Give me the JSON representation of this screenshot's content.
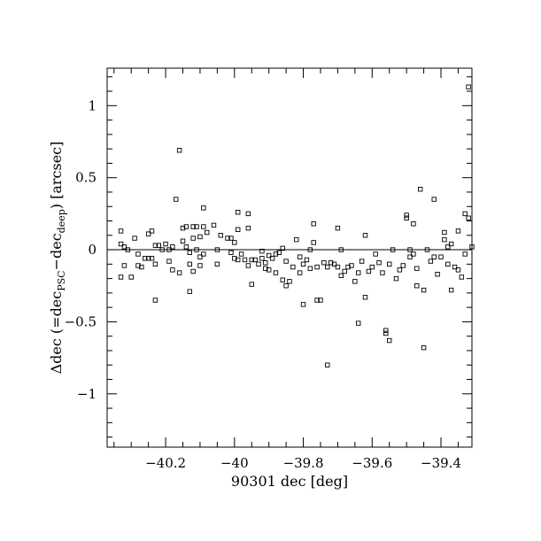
{
  "chart_data": {
    "type": "scatter",
    "title": "",
    "xlabel": "90301 dec [deg]",
    "ylabel_parts": {
      "prefix": "Δdec (=dec",
      "sub1": "PSC",
      "mid": "−dec",
      "sub2": "deep",
      "suffix": ") [arcsec]"
    },
    "xlim": [
      -40.37,
      -39.31
    ],
    "ylim": [
      -1.37,
      1.26
    ],
    "x_ticks": [
      {
        "value": -40.2,
        "label": "−40.2"
      },
      {
        "value": -40.0,
        "label": "−40"
      },
      {
        "value": -39.8,
        "label": "−39.8"
      },
      {
        "value": -39.6,
        "label": "−39.6"
      },
      {
        "value": -39.4,
        "label": "−39.4"
      }
    ],
    "y_ticks": [
      {
        "value": 1.0,
        "label": "1"
      },
      {
        "value": 0.5,
        "label": "0.5"
      },
      {
        "value": 0.0,
        "label": "0"
      },
      {
        "value": -0.5,
        "label": "−0.5"
      },
      {
        "value": -1.0,
        "label": "−1"
      }
    ],
    "x_minor_step": 0.05,
    "y_minor_step": 0.1,
    "zero_line": true,
    "marker": "open-square",
    "grid": false,
    "points": [
      [
        -40.33,
        0.13
      ],
      [
        -40.33,
        0.04
      ],
      [
        -40.32,
        0.02
      ],
      [
        -40.31,
        0.0
      ],
      [
        -40.32,
        -0.11
      ],
      [
        -40.33,
        -0.19
      ],
      [
        -40.3,
        -0.19
      ],
      [
        -40.29,
        0.08
      ],
      [
        -40.28,
        -0.03
      ],
      [
        -40.28,
        -0.11
      ],
      [
        -40.27,
        -0.12
      ],
      [
        -40.26,
        -0.06
      ],
      [
        -40.25,
        0.11
      ],
      [
        -40.24,
        0.13
      ],
      [
        -40.25,
        -0.06
      ],
      [
        -40.24,
        -0.06
      ],
      [
        -40.23,
        0.03
      ],
      [
        -40.23,
        -0.1
      ],
      [
        -40.22,
        0.03
      ],
      [
        -40.23,
        -0.35
      ],
      [
        -40.21,
        0.0
      ],
      [
        -40.2,
        0.04
      ],
      [
        -40.19,
        0.0
      ],
      [
        -40.19,
        -0.08
      ],
      [
        -40.18,
        -0.14
      ],
      [
        -40.18,
        0.02
      ],
      [
        -40.17,
        0.35
      ],
      [
        -40.16,
        0.69
      ],
      [
        -40.16,
        -0.16
      ],
      [
        -40.15,
        0.15
      ],
      [
        -40.15,
        0.06
      ],
      [
        -40.14,
        0.16
      ],
      [
        -40.14,
        0.02
      ],
      [
        -40.13,
        -0.02
      ],
      [
        -40.13,
        -0.1
      ],
      [
        -40.12,
        0.16
      ],
      [
        -40.12,
        0.08
      ],
      [
        -40.12,
        -0.15
      ],
      [
        -40.11,
        0.16
      ],
      [
        -40.13,
        -0.29
      ],
      [
        -40.11,
        0.0
      ],
      [
        -40.1,
        0.09
      ],
      [
        -40.1,
        -0.05
      ],
      [
        -40.1,
        -0.11
      ],
      [
        -40.09,
        0.29
      ],
      [
        -40.09,
        0.16
      ],
      [
        -40.09,
        -0.03
      ],
      [
        -40.08,
        0.12
      ],
      [
        -40.06,
        0.17
      ],
      [
        -40.05,
        0.0
      ],
      [
        -40.05,
        -0.1
      ],
      [
        -40.04,
        0.1
      ],
      [
        -40.02,
        0.08
      ],
      [
        -40.01,
        0.08
      ],
      [
        -40.01,
        -0.02
      ],
      [
        -40.0,
        0.05
      ],
      [
        -40.0,
        -0.06
      ],
      [
        -39.99,
        0.26
      ],
      [
        -39.99,
        0.14
      ],
      [
        -39.99,
        -0.07
      ],
      [
        -39.98,
        -0.03
      ],
      [
        -39.97,
        -0.07
      ],
      [
        -39.96,
        0.25
      ],
      [
        -39.96,
        0.15
      ],
      [
        -39.96,
        -0.11
      ],
      [
        -39.95,
        -0.24
      ],
      [
        -39.95,
        -0.07
      ],
      [
        -39.94,
        -0.07
      ],
      [
        -39.93,
        -0.1
      ],
      [
        -39.92,
        -0.06
      ],
      [
        -39.92,
        -0.01
      ],
      [
        -39.91,
        -0.13
      ],
      [
        -39.91,
        -0.09
      ],
      [
        -39.9,
        -0.14
      ],
      [
        -39.9,
        -0.04
      ],
      [
        -39.89,
        -0.06
      ],
      [
        -39.88,
        -0.03
      ],
      [
        -39.88,
        -0.16
      ],
      [
        -39.87,
        -0.02
      ],
      [
        -39.86,
        0.01
      ],
      [
        -39.86,
        -0.21
      ],
      [
        -39.85,
        -0.08
      ],
      [
        -39.85,
        -0.25
      ],
      [
        -39.84,
        -0.22
      ],
      [
        -39.83,
        -0.12
      ],
      [
        -39.82,
        0.07
      ],
      [
        -39.81,
        -0.05
      ],
      [
        -39.81,
        -0.16
      ],
      [
        -39.8,
        -0.38
      ],
      [
        -39.8,
        -0.1
      ],
      [
        -39.79,
        -0.07
      ],
      [
        -39.78,
        -0.13
      ],
      [
        -39.78,
        0.0
      ],
      [
        -39.77,
        0.05
      ],
      [
        -39.77,
        0.18
      ],
      [
        -39.76,
        -0.35
      ],
      [
        -39.76,
        -0.12
      ],
      [
        -39.75,
        -0.35
      ],
      [
        -39.74,
        -0.09
      ],
      [
        -39.73,
        -0.8
      ],
      [
        -39.73,
        -0.12
      ],
      [
        -39.72,
        -0.09
      ],
      [
        -39.71,
        -0.1
      ],
      [
        -39.7,
        0.15
      ],
      [
        -39.7,
        -0.12
      ],
      [
        -39.69,
        0.0
      ],
      [
        -39.69,
        -0.18
      ],
      [
        -39.68,
        -0.15
      ],
      [
        -39.67,
        -0.12
      ],
      [
        -39.66,
        -0.11
      ],
      [
        -39.65,
        -0.22
      ],
      [
        -39.64,
        -0.51
      ],
      [
        -39.64,
        -0.16
      ],
      [
        -39.63,
        -0.08
      ],
      [
        -39.62,
        0.1
      ],
      [
        -39.62,
        -0.33
      ],
      [
        -39.61,
        -0.15
      ],
      [
        -39.6,
        -0.12
      ],
      [
        -39.59,
        -0.03
      ],
      [
        -39.58,
        -0.09
      ],
      [
        -39.57,
        -0.16
      ],
      [
        -39.56,
        -0.56
      ],
      [
        -39.56,
        -0.58
      ],
      [
        -39.55,
        -0.63
      ],
      [
        -39.55,
        -0.1
      ],
      [
        -39.54,
        0.0
      ],
      [
        -39.53,
        -0.2
      ],
      [
        -39.52,
        -0.14
      ],
      [
        -39.51,
        -0.11
      ],
      [
        -39.5,
        0.24
      ],
      [
        -39.5,
        0.22
      ],
      [
        -39.49,
        0.0
      ],
      [
        -39.49,
        -0.05
      ],
      [
        -39.48,
        0.18
      ],
      [
        -39.48,
        -0.03
      ],
      [
        -39.47,
        -0.13
      ],
      [
        -39.47,
        -0.25
      ],
      [
        -39.46,
        0.42
      ],
      [
        -39.45,
        -0.28
      ],
      [
        -39.45,
        -0.68
      ],
      [
        -39.44,
        0.0
      ],
      [
        -39.43,
        -0.08
      ],
      [
        -39.42,
        0.35
      ],
      [
        -39.42,
        -0.05
      ],
      [
        -39.41,
        -0.17
      ],
      [
        -39.4,
        -0.05
      ],
      [
        -39.39,
        0.12
      ],
      [
        -39.39,
        0.07
      ],
      [
        -39.38,
        -0.1
      ],
      [
        -39.38,
        0.02
      ],
      [
        -39.37,
        -0.28
      ],
      [
        -39.37,
        0.04
      ],
      [
        -39.36,
        -0.12
      ],
      [
        -39.35,
        0.13
      ],
      [
        -39.35,
        -0.14
      ],
      [
        -39.34,
        -0.19
      ],
      [
        -39.33,
        0.25
      ],
      [
        -39.33,
        -0.03
      ],
      [
        -39.32,
        1.13
      ],
      [
        -39.32,
        0.22
      ],
      [
        -39.31,
        0.02
      ]
    ]
  }
}
